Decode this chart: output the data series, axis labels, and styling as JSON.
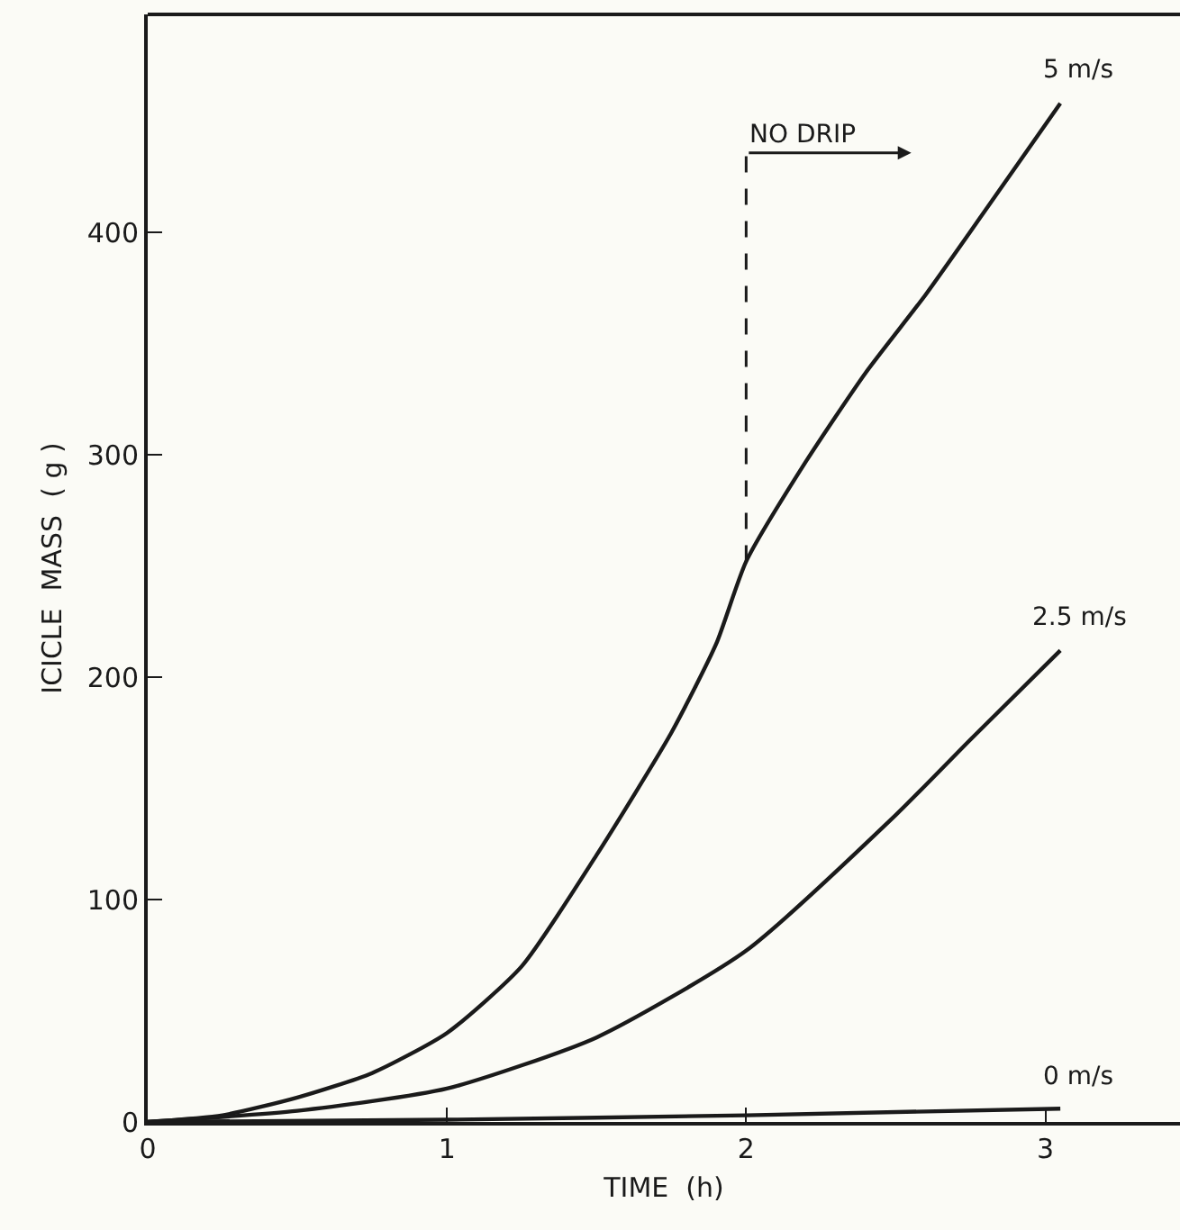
{
  "chart_data": {
    "type": "line",
    "xlabel": "TIME  (h)",
    "ylabel": "ICICLE  MASS  ( g )",
    "xlim": [
      0,
      3.45
    ],
    "ylim": [
      0,
      498
    ],
    "xticks": [
      0,
      1,
      2,
      3
    ],
    "yticks": [
      0,
      100,
      200,
      300,
      400
    ],
    "grid": false,
    "legend": false,
    "marker": "none",
    "line_style": "solid",
    "ref_lines": [
      {
        "axis": "x",
        "value": 2,
        "label": "NO DRIP",
        "line_style": "dashed",
        "color": "#1a1a1a"
      }
    ],
    "series": [
      {
        "name": "5 m/s",
        "color": "#1a1a1a",
        "x": [
          0,
          0.25,
          0.5,
          0.75,
          1,
          1.25,
          1.5,
          1.75,
          1.9,
          2,
          2.2,
          2.4,
          2.6,
          2.8,
          3.05
        ],
        "values": [
          0,
          3,
          11,
          22,
          40,
          70,
          120,
          175,
          215,
          252,
          297,
          337,
          372,
          410,
          458
        ]
      },
      {
        "name": "2.5 m/s",
        "color": "#1a1a1a",
        "x": [
          0,
          0.5,
          1,
          1.5,
          2,
          2.5,
          2.75,
          3.05
        ],
        "values": [
          0,
          5,
          15,
          38,
          77,
          138,
          172,
          212
        ]
      },
      {
        "name": "0 m/s",
        "color": "#1a1a1a",
        "x": [
          0,
          1,
          2,
          3.05
        ],
        "values": [
          0,
          1,
          3,
          6
        ]
      }
    ]
  }
}
